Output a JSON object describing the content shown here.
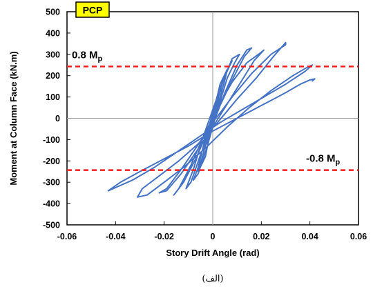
{
  "chart_data": {
    "type": "line",
    "title": "",
    "badge": "PCP",
    "xlabel": "Story Drift Angle (rad)",
    "ylabel": "Moment at Column Face (kN.m)",
    "xlim": [
      -0.06,
      0.06
    ],
    "ylim": [
      -500,
      500
    ],
    "x_ticks": [
      -0.06,
      -0.04,
      -0.02,
      0,
      0.02,
      0.04,
      0.06
    ],
    "x_tick_labels": [
      "-0.06",
      "-0.04",
      "-0.02",
      "0",
      "0.02",
      "0.04",
      "0.06"
    ],
    "y_ticks": [
      500,
      400,
      300,
      200,
      100,
      0,
      -100,
      -200,
      -300,
      -400,
      -500
    ],
    "y_tick_labels": [
      "500",
      "400",
      "300",
      "200",
      "100",
      "0",
      "-100",
      "-200",
      "-300",
      "-400",
      "-500"
    ],
    "grid": false,
    "reference_lines": [
      {
        "y": 243,
        "label_main": "0.8 M",
        "label_sub": "p",
        "color": "#ff1a1a"
      },
      {
        "y": -243,
        "label_main": "-0.8 M",
        "label_sub": "p",
        "color": "#ff1a1a"
      }
    ],
    "series": [
      {
        "color": "#4472c4",
        "x": [
          0,
          0.002,
          0.004,
          0.002,
          -0.002,
          -0.004,
          -0.002,
          0,
          0.003,
          0.005,
          0.006,
          0.003,
          -0.001,
          -0.004,
          -0.006,
          -0.003,
          0,
          0.004,
          0.007,
          0.008,
          0.005,
          0.001,
          -0.003,
          -0.006,
          -0.008,
          -0.006,
          -0.002,
          0.002,
          0.006,
          0.009,
          0.011,
          0.008,
          0.004,
          0,
          -0.004,
          -0.008,
          -0.011,
          -0.009,
          -0.005,
          0,
          0.005,
          0.01,
          0.014,
          0.016,
          0.013,
          0.008,
          0.003,
          -0.002,
          -0.007,
          -0.012,
          -0.016,
          -0.014,
          -0.009,
          -0.004,
          0.002,
          0.008,
          0.014,
          0.02,
          0.021,
          0.017,
          0.011,
          0.005,
          -0.001,
          -0.007,
          -0.013,
          -0.019,
          -0.022,
          -0.019,
          -0.013,
          -0.007,
          0,
          0.008,
          0.016,
          0.024,
          0.03,
          0.03,
          0.025,
          0.018,
          0.01,
          0.002,
          -0.006,
          -0.014,
          -0.022,
          -0.029,
          -0.031,
          -0.027,
          -0.02,
          -0.012,
          -0.003,
          0.006,
          0.015,
          0.024,
          0.033,
          0.039,
          0.041,
          0.038,
          0.03,
          0.021,
          0.012,
          0.003,
          -0.006,
          -0.015,
          -0.024,
          -0.033,
          -0.041,
          -0.043,
          -0.038,
          -0.03,
          -0.02,
          -0.01,
          0,
          0.01,
          0.02,
          0.03,
          0.036,
          0.04,
          0.042,
          0.041
        ],
        "y": [
          0,
          60,
          140,
          110,
          -60,
          -140,
          -110,
          0,
          100,
          180,
          230,
          160,
          -40,
          -170,
          -250,
          -180,
          0,
          170,
          250,
          270,
          200,
          60,
          -90,
          -230,
          -290,
          -260,
          -120,
          40,
          190,
          260,
          300,
          280,
          170,
          40,
          -90,
          -240,
          -330,
          -300,
          -170,
          -30,
          120,
          250,
          320,
          330,
          290,
          180,
          60,
          -60,
          -190,
          -300,
          -360,
          -330,
          -220,
          -90,
          50,
          170,
          260,
          310,
          320,
          270,
          160,
          50,
          -60,
          -160,
          -260,
          -340,
          -350,
          -330,
          -240,
          -140,
          -20,
          100,
          210,
          300,
          345,
          355,
          290,
          190,
          90,
          -20,
          -120,
          -200,
          -270,
          -330,
          -370,
          -360,
          -300,
          -230,
          -140,
          -40,
          50,
          130,
          200,
          240,
          250,
          220,
          160,
          100,
          40,
          -20,
          -90,
          -160,
          -230,
          -290,
          -330,
          -340,
          -300,
          -250,
          -190,
          -130,
          -60,
          0,
          60,
          120,
          160,
          180,
          185,
          175
        ]
      }
    ]
  }
}
